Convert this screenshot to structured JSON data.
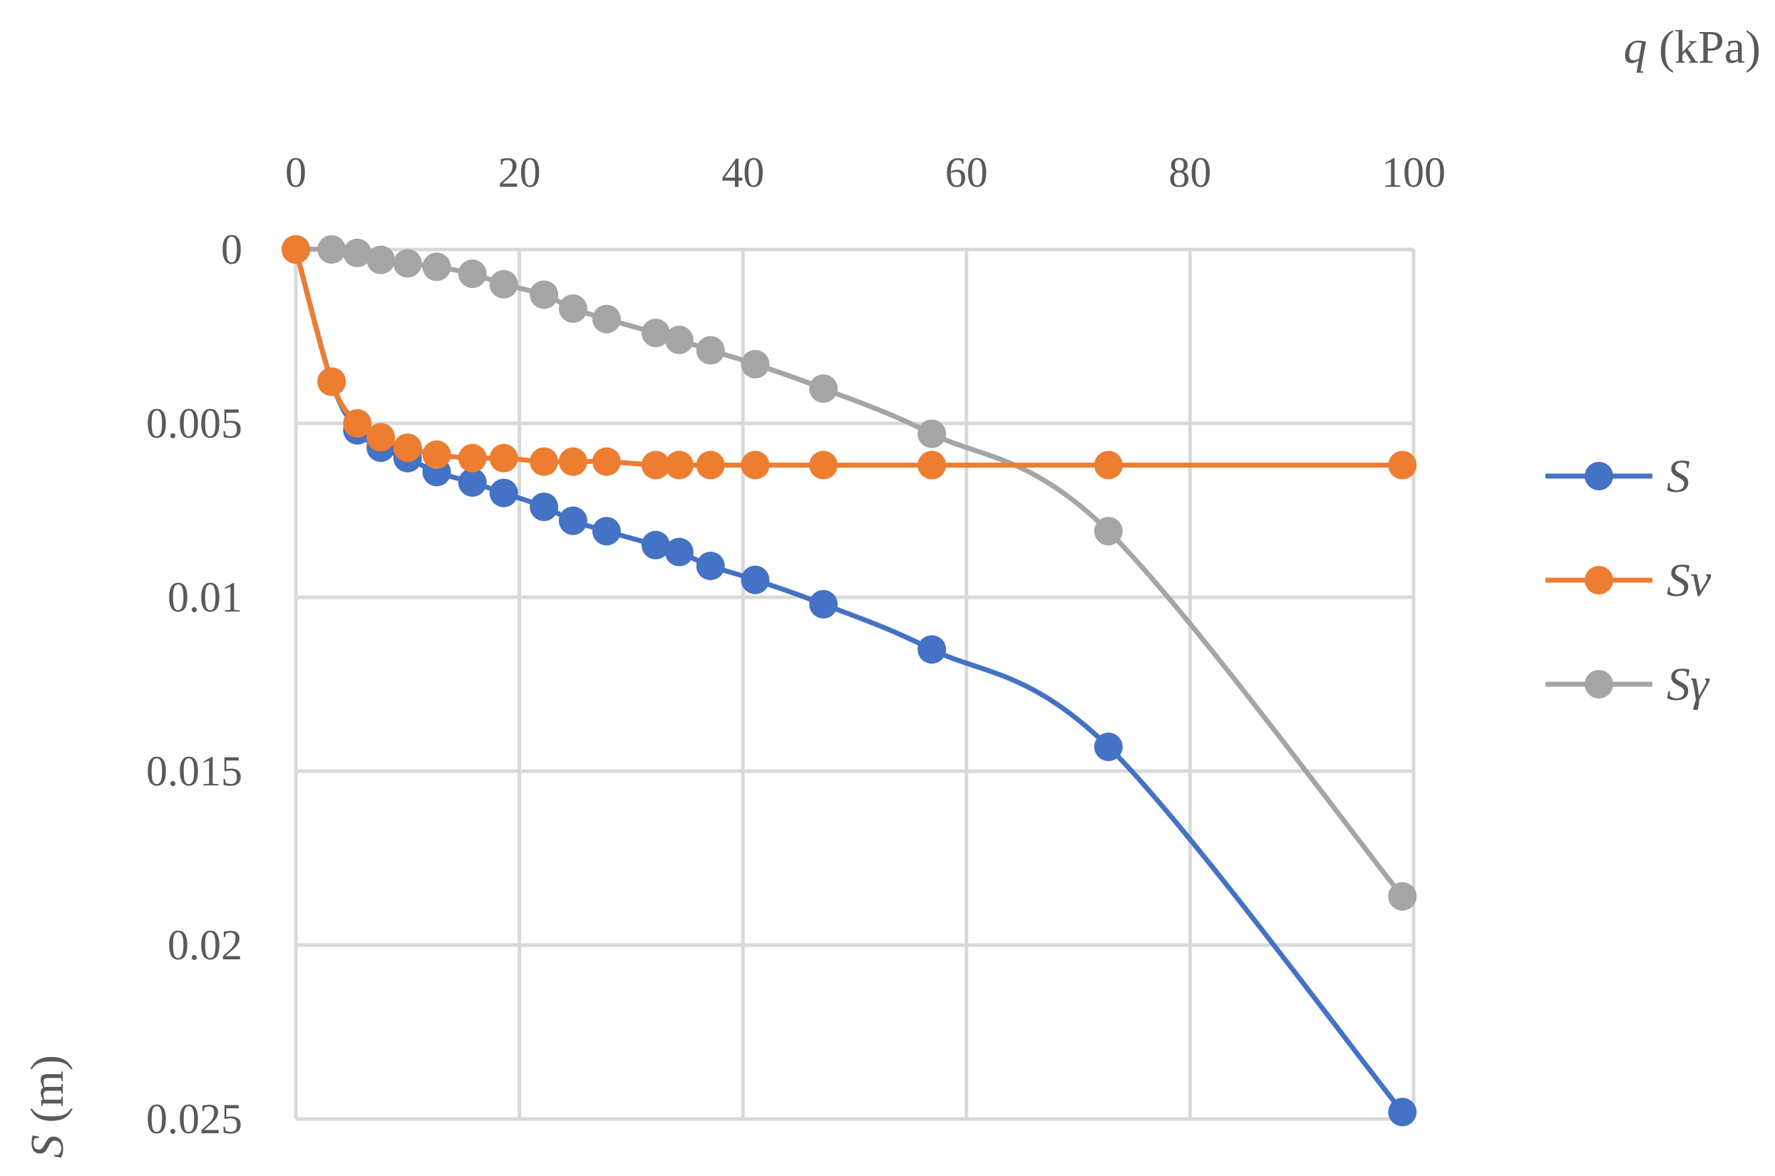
{
  "chart_data": {
    "type": "line",
    "title": "",
    "xlabel": {
      "var": "q",
      "unit": " (kPa)"
    },
    "ylabel": {
      "var": "S",
      "unit": " (m)"
    },
    "x_axis_position": "top",
    "y_axis_reversed": true,
    "xlim": [
      0,
      100
    ],
    "ylim": [
      0,
      0.025
    ],
    "x_ticks": [
      0,
      20,
      40,
      60,
      80,
      100
    ],
    "x_tick_labels": [
      "0",
      "20",
      "40",
      "60",
      "80",
      "100"
    ],
    "y_ticks": [
      0,
      0.005,
      0.01,
      0.015,
      0.02,
      0.025
    ],
    "y_tick_labels": [
      "0",
      "0.005",
      "0.01",
      "0.015",
      "0.02",
      "0.025"
    ],
    "grid": true,
    "legend_position": "right",
    "smooth": true,
    "series": [
      {
        "name": "S",
        "color": "#4472c4",
        "x": [
          0,
          3.2,
          5.5,
          7.6,
          10,
          12.6,
          15.8,
          18.6,
          22.2,
          24.8,
          27.8,
          32.2,
          34.3,
          37.1,
          41.1,
          47.2,
          56.9,
          72.7,
          99
        ],
        "y": [
          0,
          0.0038,
          0.0052,
          0.0057,
          0.006,
          0.0064,
          0.0067,
          0.007,
          0.0074,
          0.0078,
          0.0081,
          0.0085,
          0.0087,
          0.0091,
          0.0095,
          0.0102,
          0.0115,
          0.0143,
          0.0248
        ]
      },
      {
        "name": "Sv",
        "color": "#ed7d31",
        "x": [
          0,
          3.2,
          5.5,
          7.6,
          10,
          12.6,
          15.8,
          18.6,
          22.2,
          24.8,
          27.8,
          32.2,
          34.3,
          37.1,
          41.1,
          47.2,
          56.9,
          72.7,
          99
        ],
        "y": [
          0,
          0.0038,
          0.005,
          0.0054,
          0.0057,
          0.0059,
          0.006,
          0.006,
          0.0061,
          0.0061,
          0.0061,
          0.0062,
          0.0062,
          0.0062,
          0.0062,
          0.0062,
          0.0062,
          0.0062,
          0.0062
        ]
      },
      {
        "name": "Sγ",
        "color": "#a5a5a5",
        "x": [
          0,
          3.2,
          5.5,
          7.6,
          10,
          12.6,
          15.8,
          18.6,
          22.2,
          24.8,
          27.8,
          32.2,
          34.3,
          37.1,
          41.1,
          47.2,
          56.9,
          72.7,
          99
        ],
        "y": [
          0,
          0,
          0.0001,
          0.0003,
          0.0004,
          0.0005,
          0.0007,
          0.001,
          0.0013,
          0.0017,
          0.002,
          0.0024,
          0.0026,
          0.0029,
          0.0033,
          0.004,
          0.0053,
          0.0081,
          0.0186
        ]
      }
    ]
  }
}
